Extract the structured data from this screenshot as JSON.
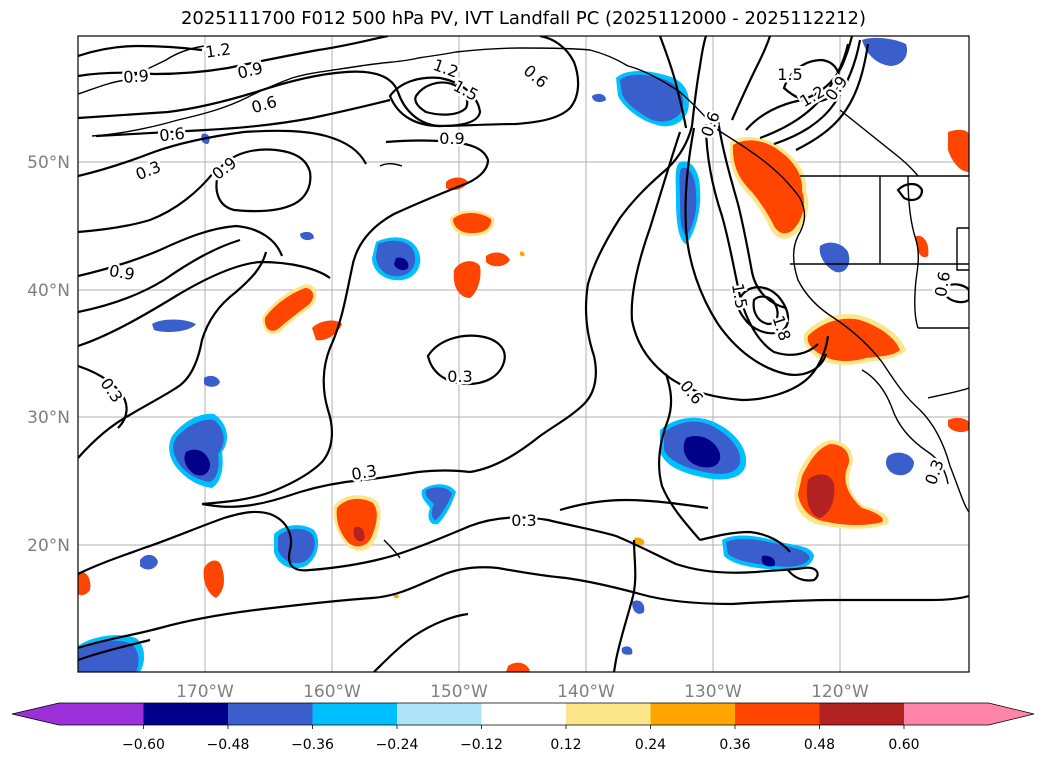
{
  "title": "2025111700 F012 500 hPa PV, IVT Landfall PC (2025112000 - 2025112212)",
  "longitude_labels": [
    "170°W",
    "160°W",
    "150°W",
    "140°W",
    "130°W",
    "120°W"
  ],
  "latitude_labels": [
    "50°N",
    "40°N",
    "30°N",
    "20°N"
  ],
  "contour_labels": [
    {
      "id": "c1",
      "text": "1.2"
    },
    {
      "id": "c2",
      "text": "0.9"
    },
    {
      "id": "c3",
      "text": "0.9"
    },
    {
      "id": "c4",
      "text": "0.6"
    },
    {
      "id": "c5",
      "text": "0.6"
    },
    {
      "id": "c6",
      "text": "0.3"
    },
    {
      "id": "c7",
      "text": "0.9"
    },
    {
      "id": "c8",
      "text": "1.2"
    },
    {
      "id": "c9",
      "text": "1.5"
    },
    {
      "id": "c10",
      "text": "0.6"
    },
    {
      "id": "c11",
      "text": "0.9"
    },
    {
      "id": "c12",
      "text": "0.9"
    },
    {
      "id": "c13",
      "text": "0.3"
    },
    {
      "id": "c14",
      "text": "0.3"
    },
    {
      "id": "c15",
      "text": "0.3"
    },
    {
      "id": "c16",
      "text": "0.3"
    },
    {
      "id": "c17",
      "text": "0.6"
    },
    {
      "id": "c18",
      "text": "1.5"
    },
    {
      "id": "c19",
      "text": "1.8"
    },
    {
      "id": "c20",
      "text": "1.5"
    },
    {
      "id": "c21",
      "text": "1.2"
    },
    {
      "id": "c22",
      "text": "0.9"
    },
    {
      "id": "c23",
      "text": "0.6"
    },
    {
      "id": "c24",
      "text": "0.3"
    },
    {
      "id": "c25",
      "text": "0.6"
    }
  ],
  "colorbar": {
    "ticks": [
      "−0.60",
      "−0.48",
      "−0.36",
      "−0.24",
      "−0.12",
      "0.12",
      "0.24",
      "0.36",
      "0.48",
      "0.60"
    ],
    "colors": [
      "#9b30d9",
      "#00008b",
      "#3a5fcd",
      "#00bfff",
      "#afe4fb",
      "#ffffff",
      "#fde68a",
      "#ffa500",
      "#ff4500",
      "#b22222",
      "#ff85a8"
    ]
  },
  "colors": {
    "neg_dark": "#00008b",
    "neg_mid": "#3a5fcd",
    "neg_light": "#00bfff",
    "pos_light": "#fde68a",
    "pos_mid": "#ffa500",
    "pos_strong": "#ff4500",
    "pos_dark": "#b22222"
  }
}
